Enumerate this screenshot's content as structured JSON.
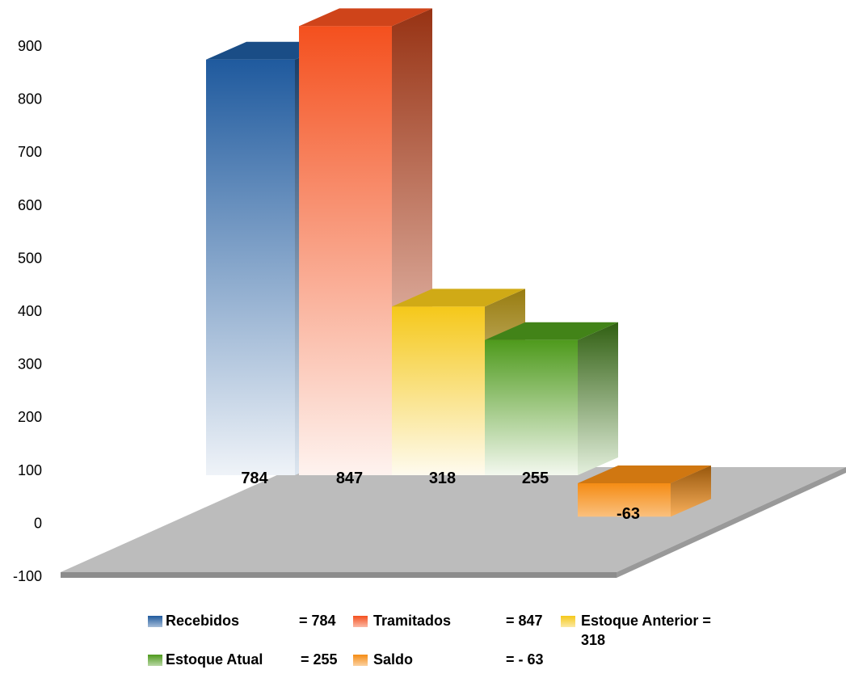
{
  "chart_data": {
    "type": "bar",
    "title": "",
    "xlabel": "",
    "ylabel": "",
    "ylim": [
      -100,
      900
    ],
    "yticks": [
      "900",
      "800",
      "700",
      "600",
      "500",
      "400",
      "300",
      "200",
      "100",
      "0",
      "-100"
    ],
    "categories": [
      "Recebidos",
      "Tramitados",
      "Estoque Anterior",
      "Estoque Atual",
      "Saldo"
    ],
    "values": [
      784,
      847,
      318,
      255,
      -63
    ],
    "data_labels": [
      "784",
      "847",
      "318",
      "255",
      "-63"
    ],
    "colors": [
      "#1f5a9e",
      "#f4501e",
      "#f5c81a",
      "#4e9a1c",
      "#f58c14"
    ],
    "legend": {
      "placement": "bottom",
      "items": [
        {
          "name": "Recebidos",
          "value": "= 784"
        },
        {
          "name": "Tramitados",
          "value": "= 847"
        },
        {
          "name": "Estoque Anterior =",
          "value": "318"
        },
        {
          "name": "Estoque Atual",
          "value": "= 255"
        },
        {
          "name": "Saldo",
          "value": "= - 63"
        }
      ]
    },
    "grid": false,
    "style": "3d"
  }
}
